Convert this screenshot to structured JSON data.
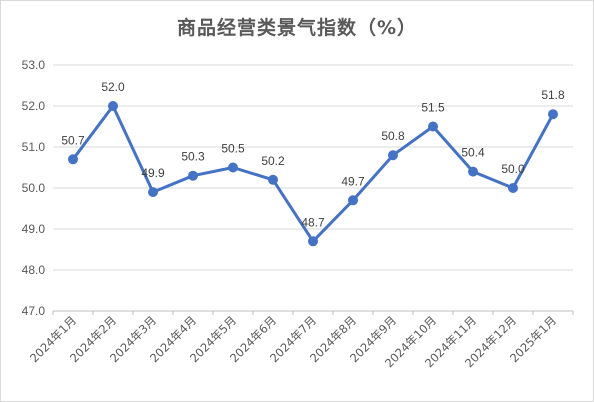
{
  "chart_data": {
    "type": "line",
    "title": "商品经营类景气指数（%）",
    "xlabel": "",
    "ylabel": "",
    "categories": [
      "2024年1月",
      "2024年2月",
      "2024年3月",
      "2024年4月",
      "2024年5月",
      "2024年6月",
      "2024年7月",
      "2024年8月",
      "2024年9月",
      "2024年10月",
      "2024年11月",
      "2024年12月",
      "2025年1月"
    ],
    "values": [
      50.7,
      52.0,
      49.9,
      50.3,
      50.5,
      50.2,
      48.7,
      49.7,
      50.8,
      51.5,
      50.4,
      50.0,
      51.8
    ],
    "value_labels": [
      "50.7",
      "52.0",
      "49.9",
      "50.3",
      "50.5",
      "50.2",
      "48.7",
      "49.7",
      "50.8",
      "51.5",
      "50.4",
      "50.0",
      "51.8"
    ],
    "ylim": [
      47,
      53
    ],
    "yticks": [
      "47.0",
      "48.0",
      "49.0",
      "50.0",
      "51.0",
      "52.0",
      "53.0"
    ],
    "grid": true,
    "legend": "none",
    "color": "#4472c4"
  }
}
